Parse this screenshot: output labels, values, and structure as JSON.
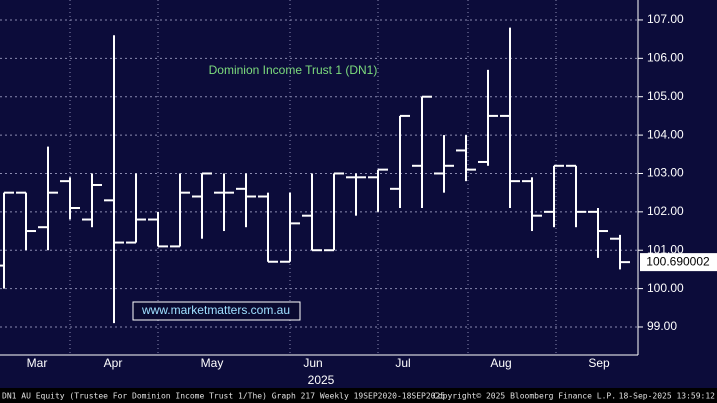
{
  "chart_data": {
    "type": "ohlc",
    "title": "Dominion Income Trust 1 (DN1)",
    "watermark": "www.marketmatters.com.au",
    "categories": [
      null,
      null,
      null,
      null,
      null,
      null,
      null,
      null,
      null,
      null,
      null,
      null,
      null,
      null,
      null,
      null,
      null,
      null,
      null,
      null,
      null,
      null,
      null,
      null,
      null,
      null,
      null,
      null,
      null
    ],
    "month_labels": [
      "Mar",
      "Apr",
      "May",
      "Jun",
      "Jul",
      "Aug",
      "Sep"
    ],
    "year_label": "2025",
    "color": "#ffffff",
    "series": [
      {
        "name": "open",
        "values": [
          100.6,
          102.5,
          101.6,
          102.8,
          101.8,
          102.3,
          101.2,
          101.8,
          101.1,
          102.4,
          102.5,
          102.6,
          102.4,
          100.7,
          101.9,
          101.0,
          102.9,
          102.9,
          102.6,
          103.2,
          103.0,
          103.6,
          103.3,
          104.5,
          102.8,
          102.0,
          103.2,
          102.0,
          101.3
        ]
      },
      {
        "name": "high",
        "values": [
          102.5,
          102.5,
          103.7,
          102.9,
          103.0,
          106.6,
          103.0,
          102.0,
          103.0,
          103.0,
          103.0,
          103.0,
          102.5,
          102.5,
          103.0,
          103.0,
          103.0,
          103.1,
          104.5,
          105.0,
          104.0,
          104.0,
          105.7,
          106.8,
          102.9,
          103.2,
          103.2,
          102.1,
          101.4
        ]
      },
      {
        "name": "low",
        "values": [
          100.0,
          101.0,
          101.0,
          101.8,
          101.6,
          99.1,
          101.2,
          101.1,
          101.1,
          101.3,
          101.5,
          101.6,
          100.7,
          100.7,
          101.0,
          101.0,
          101.9,
          102.0,
          102.1,
          102.1,
          102.5,
          102.8,
          103.2,
          102.1,
          101.5,
          101.6,
          101.6,
          100.8,
          100.5
        ]
      },
      {
        "name": "close",
        "values": [
          102.5,
          101.5,
          102.5,
          102.1,
          102.7,
          101.2,
          101.8,
          101.1,
          102.5,
          103.0,
          102.5,
          102.4,
          100.7,
          101.7,
          101.0,
          103.0,
          102.9,
          103.1,
          104.5,
          105.0,
          103.2,
          103.1,
          104.5,
          102.8,
          101.9,
          103.2,
          102.0,
          101.5,
          100.690002
        ]
      }
    ],
    "ylim": [
      98.27,
      107.52
    ],
    "yticks": [
      {
        "value": 99,
        "label": "99.00"
      },
      {
        "value": 100,
        "label": "100.00"
      },
      {
        "value": 101,
        "label": "101.00"
      },
      {
        "value": 102,
        "label": "102.00"
      },
      {
        "value": 103,
        "label": "103.00"
      },
      {
        "value": 104,
        "label": "104.00"
      },
      {
        "value": 105,
        "label": "105.00"
      },
      {
        "value": 106,
        "label": "106.00"
      },
      {
        "value": 107,
        "label": "107.00"
      }
    ],
    "grid": true,
    "footer": {
      "left": "DN1 AU Equity (Trustee For Dominion Income Trust 1/The) Graph 217  Weekly 19SEP2020-18SEP2025",
      "middle": "Copyright© 2025 Bloomberg Finance L.P.",
      "right": "18-Sep-2025 13:59:12"
    }
  }
}
